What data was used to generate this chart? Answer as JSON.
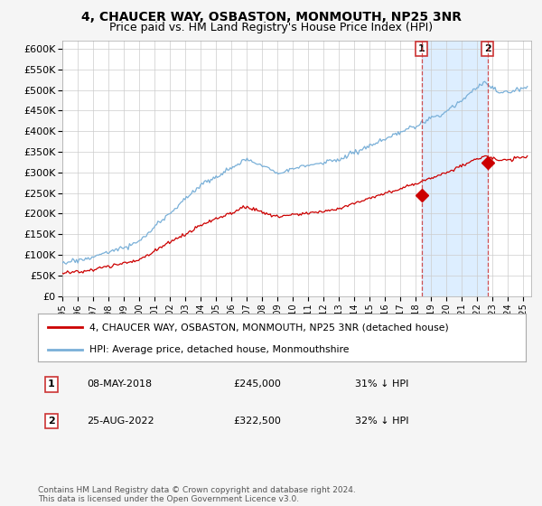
{
  "title": "4, CHAUCER WAY, OSBASTON, MONMOUTH, NP25 3NR",
  "subtitle": "Price paid vs. HM Land Registry's House Price Index (HPI)",
  "xlim_start": 1995.0,
  "xlim_end": 2025.5,
  "ylim": [
    0,
    620000
  ],
  "yticks": [
    0,
    50000,
    100000,
    150000,
    200000,
    250000,
    300000,
    350000,
    400000,
    450000,
    500000,
    550000,
    600000
  ],
  "ytick_labels": [
    "£0",
    "£50K",
    "£100K",
    "£150K",
    "£200K",
    "£250K",
    "£300K",
    "£350K",
    "£400K",
    "£450K",
    "£500K",
    "£550K",
    "£600K"
  ],
  "hpi_color": "#7ab0d8",
  "price_color": "#cc0000",
  "sale1_x": 2018.36,
  "sale1_y": 245000,
  "sale1_label": "1",
  "sale2_x": 2022.65,
  "sale2_y": 322500,
  "sale2_label": "2",
  "vline_color": "#cc3333",
  "shade_color": "#ddeeff",
  "background_color": "#f5f5f5",
  "plot_bg": "#ffffff",
  "legend_label1": "4, CHAUCER WAY, OSBASTON, MONMOUTH, NP25 3NR (detached house)",
  "legend_label2": "HPI: Average price, detached house, Monmouthshire",
  "footer": "Contains HM Land Registry data © Crown copyright and database right 2024.\nThis data is licensed under the Open Government Licence v3.0.",
  "title_fontsize": 10,
  "subtitle_fontsize": 9
}
